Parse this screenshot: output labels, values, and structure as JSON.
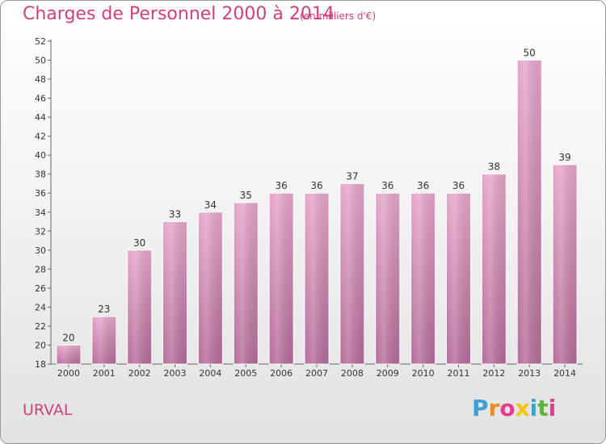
{
  "header": {
    "title": "Charges de Personnel 2000 à 2014",
    "subtitle": "(en milliers d'€)"
  },
  "footer": {
    "commune": "URVAL",
    "logo_letters": [
      "P",
      "r",
      "o",
      "x",
      "i",
      "t",
      "i"
    ],
    "logo_colors": [
      "#3aa0d8",
      "#f08a1c",
      "#e63b8c",
      "#f5c400",
      "#3aa0d8",
      "#5bb53a",
      "#e63b8c"
    ]
  },
  "colors": {
    "bar_top": "#e6a6cb",
    "bar_bottom": "#b46c98",
    "accent": "#d0407e"
  },
  "chart_data": {
    "type": "bar",
    "title": "Charges de Personnel 2000 à 2014",
    "subtitle": "(en milliers d'€)",
    "xlabel": "",
    "ylabel": "",
    "categories": [
      "2000",
      "2001",
      "2002",
      "2003",
      "2004",
      "2005",
      "2006",
      "2007",
      "2008",
      "2009",
      "2010",
      "2011",
      "2012",
      "2013",
      "2014"
    ],
    "values": [
      20,
      23,
      30,
      33,
      34,
      35,
      36,
      36,
      37,
      36,
      36,
      36,
      38,
      50,
      39
    ],
    "ylim": [
      18,
      52
    ],
    "yticks": [
      18,
      20,
      22,
      24,
      26,
      28,
      30,
      32,
      34,
      36,
      38,
      40,
      42,
      44,
      46,
      48,
      50,
      52
    ],
    "grid": false,
    "legend": "none"
  }
}
